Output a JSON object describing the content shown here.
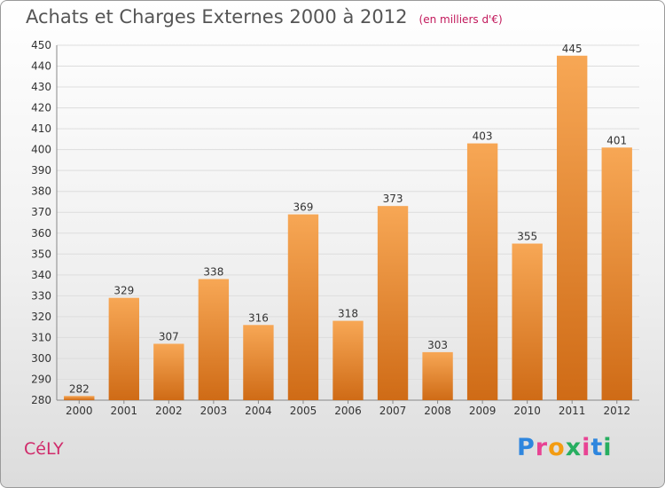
{
  "title": "Achats et Charges Externes 2000 à 2012",
  "unit": "(en milliers d'€)",
  "commune": "CéLY",
  "brand": {
    "letters": [
      "P",
      "r",
      "o",
      "x",
      "i",
      "t",
      "i"
    ],
    "colors": [
      "#2e86de",
      "#e84393",
      "#f39c12",
      "#27ae60",
      "#e84393",
      "#2e86de",
      "#27ae60"
    ]
  },
  "colors": {
    "bar_top": "#f7a755",
    "bar_bottom": "#cf6b16",
    "axis_text": "#333333",
    "grid": "#dddddd"
  },
  "chart_data": {
    "type": "bar",
    "title": "Achats et Charges Externes 2000 à 2012",
    "xlabel": "",
    "ylabel": "",
    "categories": [
      "2000",
      "2001",
      "2002",
      "2003",
      "2004",
      "2005",
      "2006",
      "2007",
      "2008",
      "2009",
      "2010",
      "2011",
      "2012"
    ],
    "values": [
      282,
      329,
      307,
      338,
      316,
      369,
      318,
      373,
      303,
      403,
      355,
      445,
      401
    ],
    "ylim": [
      280,
      450
    ],
    "yticks": [
      280,
      290,
      300,
      310,
      320,
      330,
      340,
      350,
      360,
      370,
      380,
      390,
      400,
      410,
      420,
      430,
      440,
      450
    ],
    "grid": true,
    "legend": "none"
  }
}
